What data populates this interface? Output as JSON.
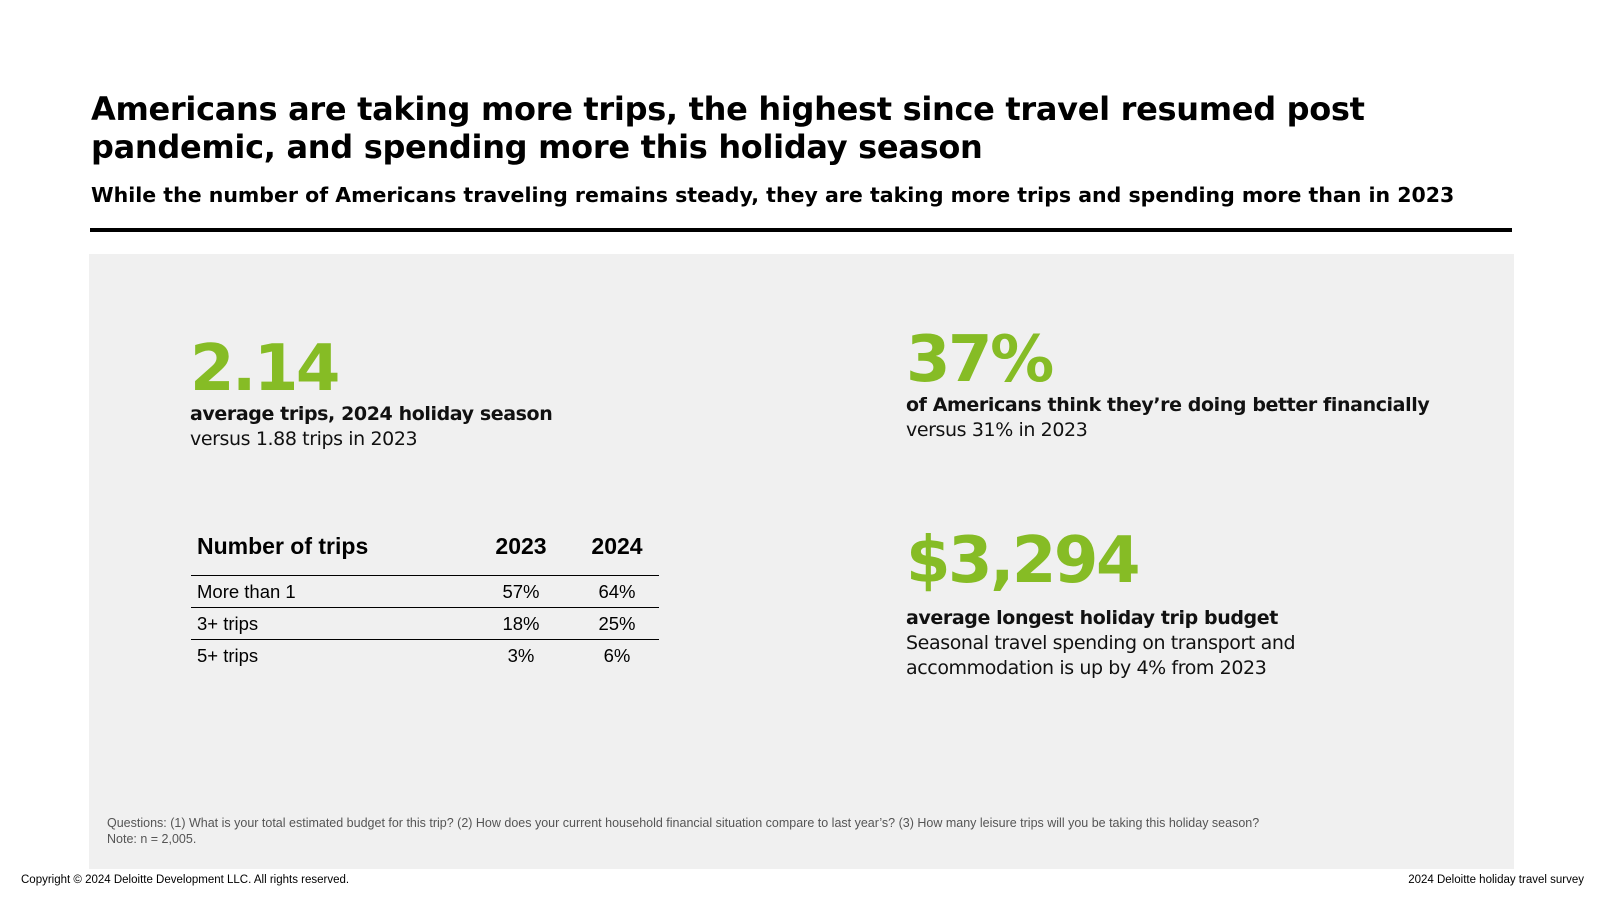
{
  "header": {
    "title": "Americans are taking more trips, the highest since travel resumed post pandemic, and spending more this holiday season",
    "subtitle": "While the number of Americans traveling remains steady, they are taking more trips and spending more than in 2023"
  },
  "stats": {
    "avg_trips": {
      "value": "2.14",
      "label": "average trips, 2024 holiday season",
      "note": "versus 1.88 trips in 2023"
    },
    "financial": {
      "value": "37%",
      "label": "of Americans think they’re doing better financially",
      "note": "versus 31% in 2023"
    },
    "budget": {
      "value": "$3,294",
      "label": "average longest holiday trip budget",
      "note": "Seasonal travel spending on transport and accommodation is up by 4% from 2023"
    }
  },
  "trips_table": {
    "headers": [
      "Number of trips",
      "2023",
      "2024"
    ],
    "rows": [
      [
        "More than 1",
        "57%",
        "64%"
      ],
      [
        "3+ trips",
        "18%",
        "25%"
      ],
      [
        "5+ trips",
        "3%",
        "6%"
      ]
    ]
  },
  "footnote": {
    "questions": "Questions: (1) What is your total estimated budget for this trip? (2) How does your current household financial situation compare to last year’s? (3) How many leisure trips will you be taking this holiday season?",
    "note": "Note: n = 2,005."
  },
  "footer": {
    "copyright": "Copyright © 2024 Deloitte Development LLC. All rights reserved.",
    "source": "2024 Deloitte holiday travel survey"
  },
  "colors": {
    "accent_green": "#86bc25",
    "panel_background": "#f0f0f0"
  }
}
